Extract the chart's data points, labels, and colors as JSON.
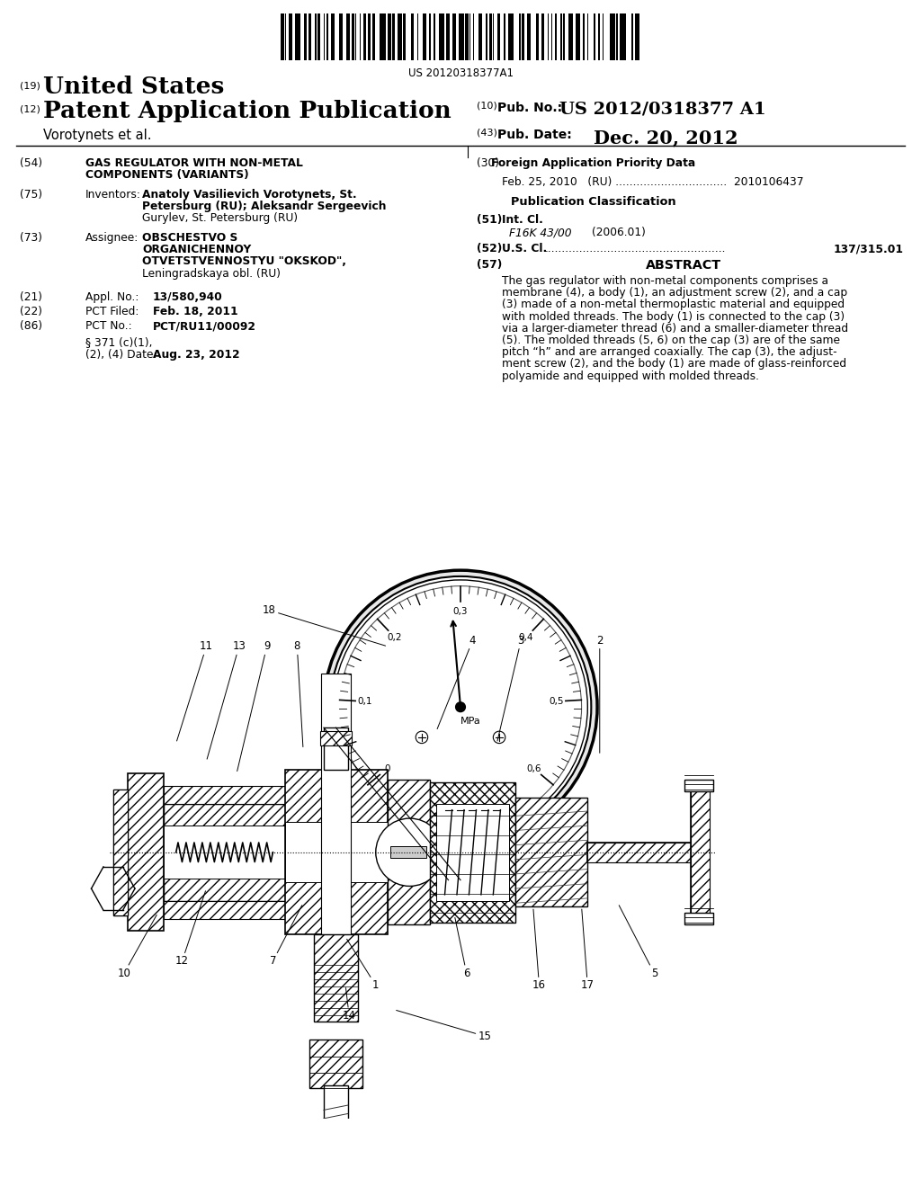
{
  "background_color": "#ffffff",
  "barcode_text": "US 20120318377A1",
  "label_19": "(19)",
  "united_states": "United States",
  "label_12": "(12)",
  "patent_app_pub": "Patent Application Publication",
  "label_10": "(10)",
  "pub_no_label": "Pub. No.:",
  "pub_no_value": "US 2012/0318377 A1",
  "vorotynets": "Vorotynets et al.",
  "label_43": "(43)",
  "pub_date_label": "Pub. Date:",
  "pub_date_value": "Dec. 20, 2012",
  "label_54": "(54)",
  "title_line1": "GAS REGULATOR WITH NON-METAL",
  "title_line2": "COMPONENTS (VARIANTS)",
  "label_75": "(75)",
  "inventors_title": "Inventors:",
  "inv_line1": "Anatoly Vasilievich Vorotynets, St.",
  "inv_line2": "Petersburg (RU); Aleksandr Sergeevich",
  "inv_line3": "Gurylev, St. Petersburg (RU)",
  "label_73": "(73)",
  "assignee_title": "Assignee:",
  "asgn_line1": "OBSCHESTVO S",
  "asgn_line2": "ORGANICHENNOY",
  "asgn_line3": "OTVETSTVENNOSTYU \"OKSKOD\",",
  "asgn_line4": "Leningradskaya obl. (RU)",
  "label_21": "(21)",
  "appl_no_label": "Appl. No.:",
  "appl_no_value": "13/580,940",
  "label_22": "(22)",
  "pct_filed_label": "PCT Filed:",
  "pct_filed_value": "Feb. 18, 2011",
  "label_86": "(86)",
  "pct_no_label": "PCT No.:",
  "pct_no_value": "PCT/RU11/00092",
  "sec371_line1": "§ 371 (c)(1),",
  "sec371_line2": "(2), (4) Date:",
  "sec371_date": "Aug. 23, 2012",
  "label_30": "(30)",
  "foreign_app_title": "Foreign Application Priority Data",
  "foreign_app_line": "Feb. 25, 2010   (RU) ................................  2010106437",
  "pub_class_title": "Publication Classification",
  "label_51": "(51)",
  "int_cl_label": "Int. Cl.",
  "int_cl_value": "F16K 43/00",
  "int_cl_year": "(2006.01)",
  "label_52": "(52)",
  "us_cl_label": "U.S. Cl.",
  "us_cl_dots": "....................................................",
  "us_cl_value": "137/315.01",
  "label_57": "(57)",
  "abstract_title": "ABSTRACT",
  "abstract_lines": [
    "The gas regulator with non-metal components comprises a",
    "membrane (4), a body (1), an adjustment screw (2), and a cap",
    "(3) made of a non-metal thermoplastic material and equipped",
    "with molded threads. The body (1) is connected to the cap (3)",
    "via a larger-diameter thread (6) and a smaller-diameter thread",
    "(5). The molded threads (5, 6) on the cap (3) are of the same",
    "pitch “h” and are arranged coaxially. The cap (3), the adjust-",
    "ment screw (2), and the body (1) are made of glass-reinforced",
    "polyamide and equipped with molded threads."
  ]
}
